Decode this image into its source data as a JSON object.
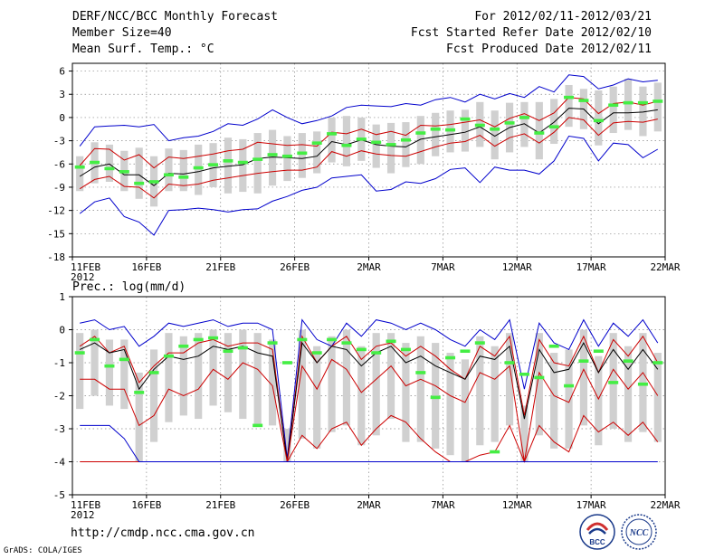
{
  "header": {
    "title": "DERF/NCC/BCC Monthly Forecast",
    "member_size": "Member Size=40",
    "variable": "Mean Surf. Temp.: °C",
    "period": "For 2012/02/11-2012/03/21",
    "fcst_started": "Fcst Started Refer Date 2012/02/10",
    "fcst_produced": "Fcst Produced Date 2012/02/11"
  },
  "footer": {
    "url": "http://cmdp.ncc.cma.gov.cn",
    "grads": "GrADS: COLA/IGES",
    "logo_left": "BCC",
    "logo_right": "NCC"
  },
  "colors": {
    "outer_bound": "#0000cc",
    "inner_bound": "#cc0000",
    "ensemble_mean": "#000000",
    "box": "#d0d0d0",
    "observed_mark": "#44ee44",
    "grid": "#888888"
  },
  "chart_data": [
    {
      "type": "line",
      "title": "Mean Surf. Temp.: °C",
      "xlabel": "",
      "ylabel": "°C",
      "ylim": [
        -18,
        7
      ],
      "yticks": [
        "6",
        "3",
        "0",
        "-3",
        "-6",
        "-9",
        "-12",
        "-15",
        "-18"
      ],
      "x_tick_labels": [
        "11FEB",
        "16FEB",
        "21FEB",
        "26FEB",
        "2MAR",
        "7MAR",
        "12MAR",
        "17MAR",
        "22MAR"
      ],
      "x_year_label": "2012",
      "grid": true,
      "n_days": 40,
      "series": [
        {
          "name": "upper-bound",
          "style": "outer",
          "values": [
            -3.7,
            -1.2,
            -1.1,
            -1.0,
            -1.2,
            -0.9,
            -3.0,
            -2.6,
            -2.4,
            -1.8,
            -0.8,
            -1.0,
            -0.2,
            1.0,
            0.0,
            -0.8,
            -0.4,
            0.2,
            1.3,
            1.6,
            1.5,
            1.4,
            1.8,
            1.6,
            2.3,
            2.6,
            2.0,
            3.0,
            2.4,
            3.1,
            2.6,
            4.0,
            3.3,
            5.5,
            5.3,
            3.7,
            4.2,
            5.0,
            4.6,
            4.8
          ]
        },
        {
          "name": "upper-spread",
          "style": "inner",
          "values": [
            -6.2,
            -4.0,
            -4.1,
            -5.5,
            -4.8,
            -6.5,
            -5.1,
            -5.3,
            -5.0,
            -4.7,
            -4.3,
            -4.1,
            -3.2,
            -3.4,
            -3.6,
            -3.5,
            -3.7,
            -1.9,
            -2.1,
            -1.5,
            -2.2,
            -1.8,
            -2.3,
            -1.0,
            -1.1,
            -0.9,
            -0.6,
            -0.3,
            -1.2,
            -0.1,
            0.5,
            -0.4,
            0.6,
            2.6,
            2.4,
            0.5,
            1.8,
            2.0,
            1.6,
            2.1
          ]
        },
        {
          "name": "ensemble-mean",
          "style": "mean",
          "values": [
            -7.6,
            -6.4,
            -6.0,
            -7.4,
            -7.4,
            -8.8,
            -7.2,
            -7.3,
            -7.0,
            -6.5,
            -6.3,
            -6.1,
            -5.3,
            -5.1,
            -5.2,
            -5.3,
            -5.0,
            -3.1,
            -3.5,
            -2.9,
            -3.5,
            -3.7,
            -3.8,
            -2.8,
            -2.5,
            -2.2,
            -1.9,
            -1.2,
            -2.4,
            -1.3,
            -0.8,
            -2.0,
            -0.6,
            1.2,
            1.1,
            -0.8,
            0.6,
            0.6,
            0.7,
            1.0
          ]
        },
        {
          "name": "lower-spread",
          "style": "inner",
          "values": [
            -9.2,
            -8.0,
            -7.6,
            -8.9,
            -9.0,
            -10.4,
            -8.6,
            -8.8,
            -8.6,
            -8.1,
            -7.8,
            -7.5,
            -7.2,
            -7.0,
            -6.8,
            -6.8,
            -6.4,
            -4.4,
            -5.0,
            -4.3,
            -4.7,
            -4.9,
            -5.0,
            -4.4,
            -3.8,
            -3.3,
            -3.1,
            -2.3,
            -3.7,
            -2.6,
            -2.1,
            -3.3,
            -1.9,
            0.0,
            -0.3,
            -2.3,
            -0.7,
            -0.5,
            -0.6,
            -0.2
          ]
        },
        {
          "name": "lower-bound",
          "style": "outer",
          "values": [
            -12.4,
            -10.9,
            -10.4,
            -12.8,
            -13.5,
            -15.2,
            -12.0,
            -11.9,
            -11.7,
            -11.9,
            -12.2,
            -11.9,
            -11.8,
            -10.8,
            -10.2,
            -9.4,
            -9.0,
            -7.8,
            -7.6,
            -7.4,
            -9.5,
            -9.3,
            -8.3,
            -8.5,
            -7.9,
            -6.7,
            -6.5,
            -8.4,
            -6.4,
            -6.8,
            -6.8,
            -7.3,
            -5.6,
            -2.4,
            -2.7,
            -5.6,
            -3.3,
            -3.5,
            -5.2,
            -4.1
          ]
        }
      ],
      "box_low": [
        -9.5,
        -8.5,
        -8.3,
        -9.5,
        -10.5,
        -11.5,
        -9.5,
        -9.5,
        -10.0,
        -9.0,
        -9.8,
        -9.6,
        -9.8,
        -8.8,
        -8.2,
        -7.8,
        -7.2,
        -5.8,
        -6.3,
        -5.6,
        -6.5,
        -7.2,
        -6.4,
        -6.0,
        -5.0,
        -4.5,
        -4.4,
        -3.8,
        -5.4,
        -4.5,
        -3.8,
        -5.4,
        -3.4,
        -1.2,
        -1.5,
        -3.6,
        -2.0,
        -1.6,
        -2.4,
        -1.8
      ],
      "box_high": [
        -5.0,
        -3.2,
        -3.5,
        -4.3,
        -3.9,
        -5.0,
        -4.0,
        -4.2,
        -3.5,
        -3.3,
        -2.6,
        -2.8,
        -2.0,
        -1.6,
        -2.4,
        -2.0,
        -1.8,
        0.0,
        0.2,
        0.0,
        -0.9,
        -0.7,
        -0.6,
        0.2,
        0.6,
        0.9,
        1.0,
        2.0,
        0.9,
        1.9,
        2.0,
        2.0,
        2.4,
        4.2,
        3.7,
        3.5,
        4.0,
        5.0,
        4.0,
        4.5
      ],
      "observed": [
        -6.4,
        -5.8,
        -6.6,
        -7.0,
        -8.5,
        -8.3,
        -7.4,
        -7.7,
        -6.5,
        -6.1,
        -5.6,
        -5.8,
        -5.4,
        -4.8,
        -5.0,
        -4.6,
        -3.3,
        -2.1,
        -3.6,
        -2.8,
        -3.2,
        -3.5,
        -2.9,
        -2.0,
        -1.5,
        -1.6,
        -0.2,
        -1.0,
        -1.5,
        -0.7,
        0.0,
        -2.0,
        -1.2,
        2.6,
        2.2,
        -0.4,
        1.6,
        1.9,
        1.9,
        2.1
      ]
    },
    {
      "type": "line",
      "title": "Prec.: log(mm/d)",
      "xlabel": "",
      "ylabel": "log(mm/d)",
      "ylim": [
        -5,
        1
      ],
      "yticks": [
        "1",
        "0",
        "-1",
        "-2",
        "-3",
        "-4",
        "-5"
      ],
      "x_tick_labels": [
        "11FEB",
        "16FEB",
        "21FEB",
        "26FEB",
        "2MAR",
        "7MAR",
        "12MAR",
        "17MAR",
        "22MAR"
      ],
      "x_year_label": "2012",
      "grid": true,
      "n_days": 40,
      "series": [
        {
          "name": "upper-bound",
          "style": "outer",
          "values": [
            0.2,
            0.3,
            0.0,
            0.1,
            -0.5,
            -0.2,
            0.2,
            0.1,
            0.2,
            0.3,
            0.1,
            0.2,
            0.2,
            0.0,
            -3.9,
            0.3,
            -0.3,
            -0.5,
            0.2,
            -0.2,
            0.3,
            0.2,
            0.0,
            0.2,
            0.0,
            -0.3,
            -0.5,
            0.0,
            -0.3,
            0.3,
            -1.8,
            0.2,
            -0.4,
            -0.6,
            0.3,
            -0.5,
            0.2,
            -0.2,
            0.3,
            -0.4
          ]
        },
        {
          "name": "upper-spread",
          "style": "inner",
          "values": [
            -0.5,
            -0.2,
            -0.7,
            -0.5,
            -1.6,
            -1.1,
            -0.7,
            -0.7,
            -0.4,
            -0.3,
            -0.5,
            -0.4,
            -0.4,
            -0.6,
            -4.0,
            -0.2,
            -1.0,
            -0.5,
            -0.2,
            -0.9,
            -0.5,
            -0.4,
            -0.8,
            -0.5,
            -0.8,
            -1.2,
            -1.5,
            -0.5,
            -0.8,
            -0.2,
            -2.6,
            -0.3,
            -1.0,
            -1.1,
            -0.2,
            -1.3,
            -0.3,
            -0.8,
            -0.2,
            -1.0
          ]
        },
        {
          "name": "ensemble-mean",
          "style": "mean",
          "values": [
            -0.6,
            -0.4,
            -0.7,
            -0.6,
            -1.8,
            -1.2,
            -0.8,
            -0.9,
            -0.8,
            -0.5,
            -0.6,
            -0.5,
            -0.7,
            -0.8,
            -4.0,
            -0.4,
            -1.0,
            -0.5,
            -0.6,
            -1.1,
            -0.7,
            -0.5,
            -1.0,
            -0.8,
            -1.1,
            -1.3,
            -1.5,
            -0.8,
            -0.9,
            -0.5,
            -2.7,
            -0.6,
            -1.3,
            -1.2,
            -0.4,
            -1.3,
            -0.6,
            -1.2,
            -0.6,
            -1.2
          ]
        },
        {
          "name": "lower-spread",
          "style": "inner",
          "values": [
            -1.5,
            -1.5,
            -1.8,
            -1.8,
            -2.9,
            -2.6,
            -1.8,
            -2.0,
            -1.8,
            -1.2,
            -1.5,
            -1.0,
            -1.2,
            -1.7,
            -4.0,
            -1.1,
            -1.8,
            -0.9,
            -1.2,
            -1.9,
            -1.5,
            -1.1,
            -1.7,
            -1.5,
            -1.7,
            -2.0,
            -2.2,
            -1.3,
            -1.5,
            -1.1,
            -4.0,
            -1.3,
            -2.0,
            -2.2,
            -1.2,
            -2.1,
            -1.2,
            -1.8,
            -1.3,
            -2.0
          ]
        },
        {
          "name": "lower-spread-2",
          "style": "inner",
          "values": [
            -4.0,
            -4.0,
            -4.0,
            -4.0,
            -4.0,
            -4.0,
            -4.0,
            -4.0,
            -4.0,
            -4.0,
            -4.0,
            -4.0,
            -4.0,
            -4.0,
            -4.0,
            -3.2,
            -3.6,
            -3.0,
            -2.8,
            -3.5,
            -3.0,
            -2.6,
            -2.8,
            -3.3,
            -3.7,
            -4.0,
            -4.0,
            -3.8,
            -3.7,
            -2.9,
            -4.0,
            -2.9,
            -3.4,
            -3.7,
            -2.6,
            -3.1,
            -2.8,
            -3.2,
            -2.8,
            -3.4
          ]
        },
        {
          "name": "lower-bound",
          "style": "outer",
          "values": [
            -2.9,
            -2.9,
            -2.9,
            -3.3,
            -4.0,
            -4.0,
            -4.0,
            -4.0,
            -4.0,
            -4.0,
            -4.0,
            -4.0,
            -4.0,
            -4.0,
            -4.0,
            -4.0,
            -4.0,
            -4.0,
            -4.0,
            -4.0,
            -4.0,
            -4.0,
            -4.0,
            -4.0,
            -4.0,
            -4.0,
            -4.0,
            -4.0,
            -4.0,
            -4.0,
            -4.0,
            -4.0,
            -4.0,
            -4.0,
            -4.0,
            -4.0,
            -4.0,
            -4.0,
            -4.0,
            -4.0
          ]
        }
      ],
      "box_low": [
        -2.4,
        -2.0,
        -2.3,
        -2.4,
        -4.0,
        -3.4,
        -2.8,
        -2.6,
        -2.7,
        -2.3,
        -2.5,
        -2.7,
        -2.9,
        -2.9,
        -4.0,
        -3.3,
        -3.6,
        -3.1,
        -2.9,
        -3.5,
        -3.2,
        -2.7,
        -3.4,
        -3.4,
        -3.6,
        -3.8,
        -4.0,
        -3.5,
        -3.4,
        -2.9,
        -4.0,
        -3.2,
        -3.6,
        -3.6,
        -2.9,
        -3.5,
        -3.0,
        -3.4,
        -3.1,
        -3.4
      ],
      "box_high": [
        -0.1,
        0.0,
        -0.3,
        -0.3,
        -1.3,
        -0.6,
        -0.1,
        -0.2,
        -0.1,
        0.0,
        -0.1,
        0.0,
        -0.1,
        -0.3,
        -3.0,
        0.0,
        -0.5,
        -0.2,
        0.0,
        -0.5,
        -0.1,
        -0.1,
        -0.4,
        -0.2,
        -0.4,
        -0.7,
        -0.9,
        -0.2,
        -0.5,
        -0.1,
        -2.3,
        -0.1,
        -0.7,
        -0.6,
        0.0,
        -0.8,
        -0.1,
        -0.5,
        -0.1,
        -0.7
      ],
      "observed": [
        -0.7,
        -0.3,
        -1.1,
        -0.9,
        -1.9,
        -1.3,
        -0.8,
        -0.5,
        -0.3,
        -0.25,
        -0.65,
        -0.55,
        -2.9,
        -0.4,
        -1.0,
        -0.3,
        -0.7,
        -0.3,
        -0.4,
        -0.6,
        -0.7,
        -0.35,
        -0.6,
        -1.3,
        -2.05,
        -0.85,
        -0.65,
        -0.4,
        -3.7,
        -1.0,
        -1.35,
        -1.45,
        -0.5,
        -1.7,
        -0.95,
        -0.65,
        -1.6,
        -0.95,
        -1.65,
        -1.0
      ]
    }
  ]
}
